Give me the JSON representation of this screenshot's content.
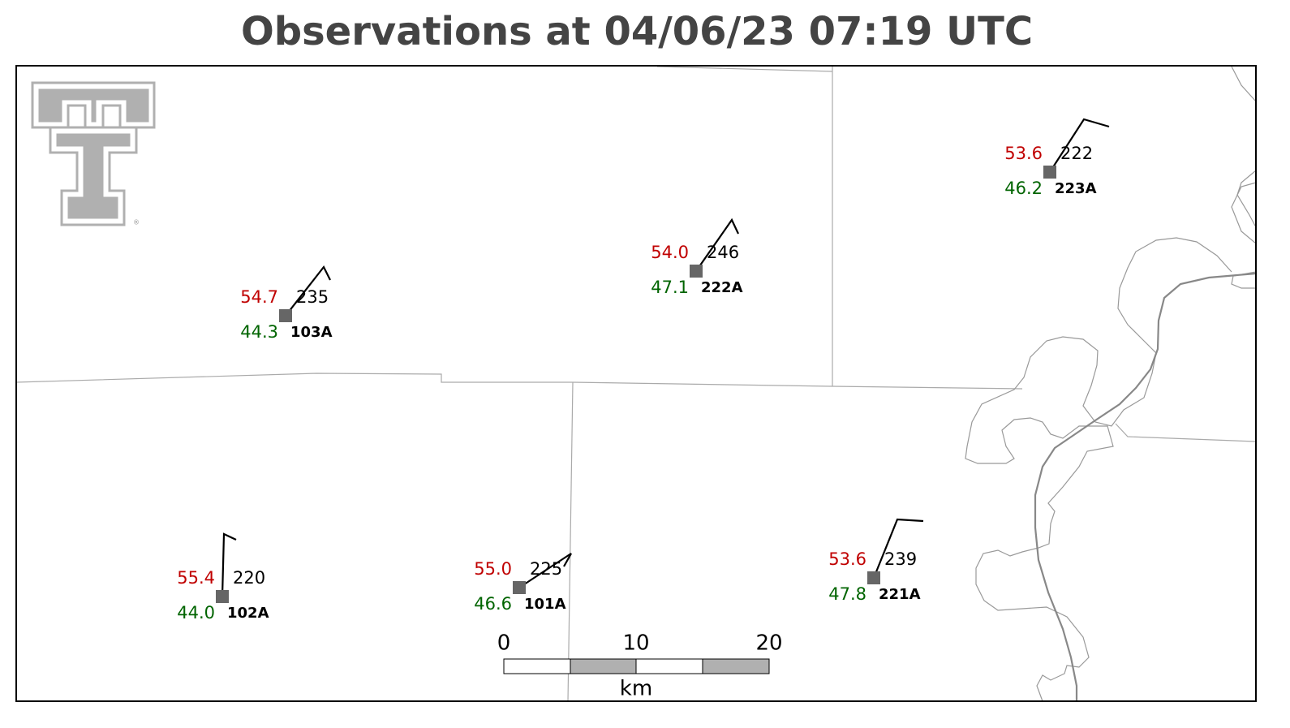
{
  "title": "Observations at 04/06/23 07:19 UTC",
  "stations": [
    {
      "id": "103A",
      "temperature": "54.7",
      "dewpoint": "44.3",
      "value": "235"
    },
    {
      "id": "222A",
      "temperature": "54.0",
      "dewpoint": "47.1",
      "value": "246"
    },
    {
      "id": "223A",
      "temperature": "53.6",
      "dewpoint": "46.2",
      "value": "222"
    },
    {
      "id": "102A",
      "temperature": "55.4",
      "dewpoint": "44.0",
      "value": "220"
    },
    {
      "id": "101A",
      "temperature": "55.0",
      "dewpoint": "46.6",
      "value": "225"
    },
    {
      "id": "221A",
      "temperature": "53.6",
      "dewpoint": "47.8",
      "value": "239"
    }
  ],
  "scale_bar": {
    "labels": [
      "0",
      "10",
      "20"
    ],
    "unit": "km"
  }
}
